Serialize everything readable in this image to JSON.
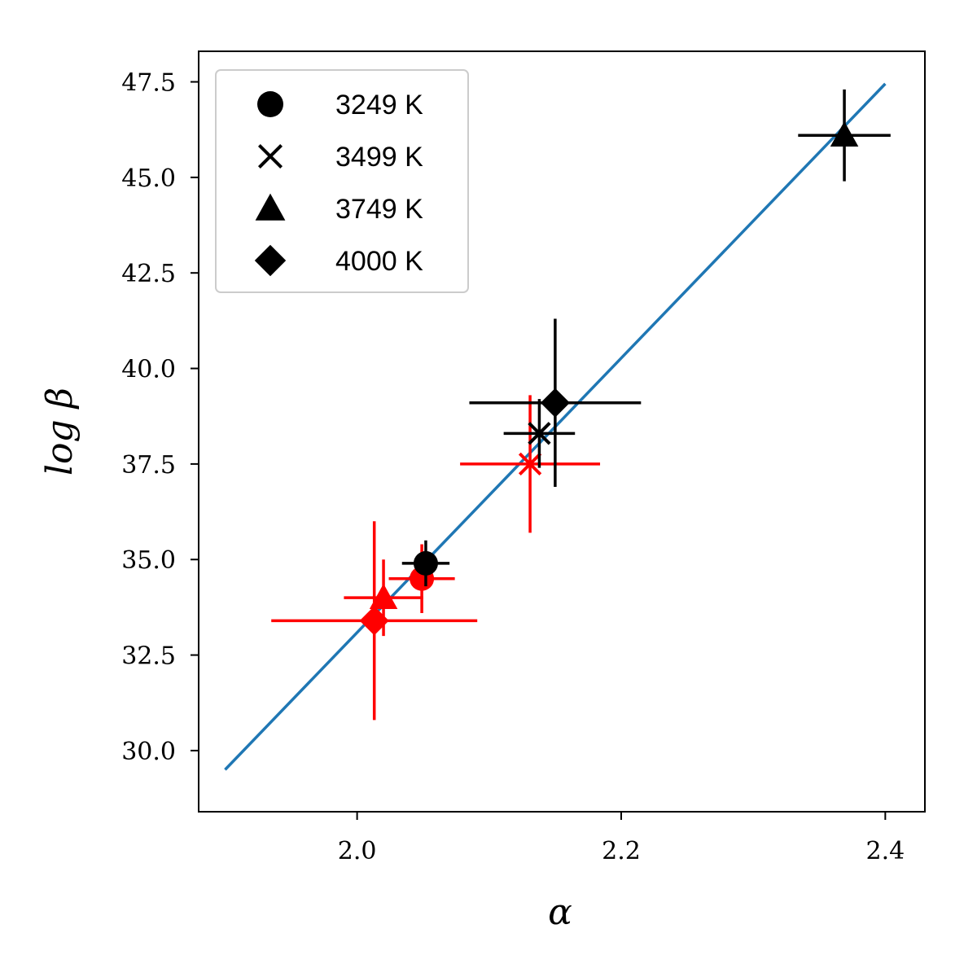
{
  "chart_data": {
    "type": "scatter",
    "xlabel": "α",
    "ylabel": "log β",
    "xlim": [
      1.88,
      2.43
    ],
    "ylim": [
      28.4,
      48.3
    ],
    "x_ticks": [
      2.0,
      2.2,
      2.4
    ],
    "x_tick_labels": [
      "2.0",
      "2.2",
      "2.4"
    ],
    "y_ticks": [
      30.0,
      32.5,
      35.0,
      37.5,
      40.0,
      42.5,
      45.0,
      47.5
    ],
    "y_tick_labels": [
      "30.0",
      "32.5",
      "35.0",
      "37.5",
      "40.0",
      "42.5",
      "45.0",
      "47.5"
    ],
    "grid": false,
    "legend_position": "top-left",
    "legend": [
      {
        "marker": "circle",
        "label": "3249 K"
      },
      {
        "marker": "x",
        "label": "3499 K"
      },
      {
        "marker": "triangle",
        "label": "3749 K"
      },
      {
        "marker": "diamond",
        "label": "4000 K"
      }
    ],
    "colors": {
      "black": "#000000",
      "red": "#ff0000",
      "fit": "#1f77b4"
    },
    "points": [
      {
        "color": "red",
        "marker": "diamond",
        "x": 2.013,
        "y": 33.4,
        "xerr": 0.078,
        "yerr": 2.6
      },
      {
        "color": "red",
        "marker": "triangle",
        "x": 2.02,
        "y": 34.0,
        "xerr": 0.03,
        "yerr": 1.0
      },
      {
        "color": "red",
        "marker": "circle",
        "x": 2.049,
        "y": 34.5,
        "xerr": 0.025,
        "yerr": 0.9
      },
      {
        "color": "black",
        "marker": "circle",
        "x": 2.052,
        "y": 34.9,
        "xerr": 0.018,
        "yerr": 0.6
      },
      {
        "color": "red",
        "marker": "x",
        "x": 2.131,
        "y": 37.5,
        "xerr": 0.053,
        "yerr": 1.8
      },
      {
        "color": "black",
        "marker": "x",
        "x": 2.138,
        "y": 38.3,
        "xerr": 0.027,
        "yerr": 0.9
      },
      {
        "color": "black",
        "marker": "diamond",
        "x": 2.15,
        "y": 39.1,
        "xerr": 0.065,
        "yerr": 2.2
      },
      {
        "color": "black",
        "marker": "triangle",
        "x": 2.369,
        "y": 46.1,
        "xerr": 0.035,
        "yerr": 1.2
      }
    ],
    "fit_line": {
      "x": [
        1.9,
        2.4
      ],
      "y": [
        29.5,
        47.45
      ]
    }
  }
}
